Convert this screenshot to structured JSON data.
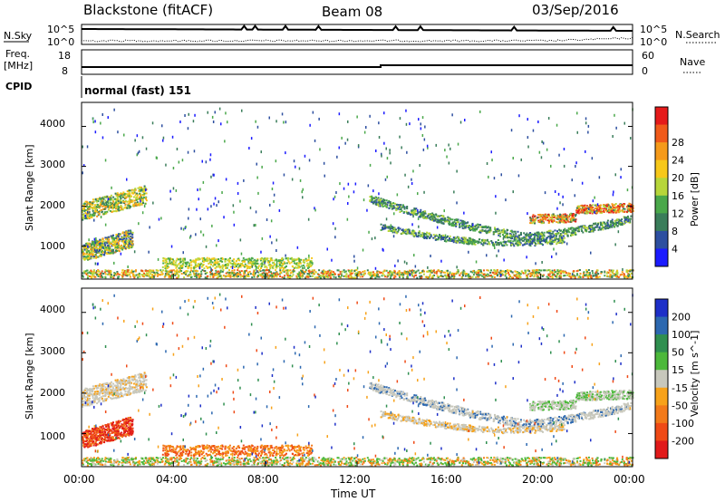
{
  "header": {
    "title": "Blackstone (fitACF)",
    "beam": "Beam 08",
    "date": "03/Sep/2016"
  },
  "nsky_panel": {
    "left_label": "N.Sky",
    "right_label": "N.Search",
    "ticks_left": [
      "10^5",
      "10^0"
    ],
    "ticks_right": [
      "10^5",
      "10^0"
    ]
  },
  "freq_panel": {
    "left_label_line1": "Freq.",
    "left_label_line2": "[MHz]",
    "right_label": "Nave",
    "ticks_left": [
      "18",
      "8"
    ],
    "ticks_right": [
      "60",
      "0"
    ]
  },
  "cpid": {
    "label": "CPID",
    "mode": "normal (fast) 151"
  },
  "power_panel": {
    "ylabel": "Slant Range [km]",
    "yticks": [
      "1000",
      "2000",
      "3000",
      "4000"
    ],
    "colorbar_label": "Power [dB]",
    "colorbar_ticks": [
      "4",
      "8",
      "12",
      "16",
      "20",
      "24",
      "28"
    ],
    "colors": [
      "#1b1bff",
      "#2d4fa0",
      "#3a7d5a",
      "#4aa84a",
      "#b7d63a",
      "#f7c81a",
      "#f59a1a",
      "#f05a1a",
      "#e51a1a"
    ]
  },
  "velocity_panel": {
    "ylabel": "Slant Range [km]",
    "yticks": [
      "1000",
      "2000",
      "3000",
      "4000"
    ],
    "colorbar_label": "Velocity [m s^-1]",
    "colorbar_ticks": [
      "200",
      "100",
      "50",
      "15",
      "-15",
      "-50",
      "-100",
      "-200"
    ],
    "colors": [
      "#1d2fc8",
      "#2c68b0",
      "#2f8f4f",
      "#4cb83a",
      "#c8c8bc",
      "#f7a21a",
      "#f27a1a",
      "#ef4a16",
      "#e11a1a"
    ]
  },
  "x_axis": {
    "label": "Time UT",
    "ticks": [
      "00:00",
      "04:00",
      "08:00",
      "12:00",
      "16:00",
      "20:00",
      "00:00"
    ]
  }
}
